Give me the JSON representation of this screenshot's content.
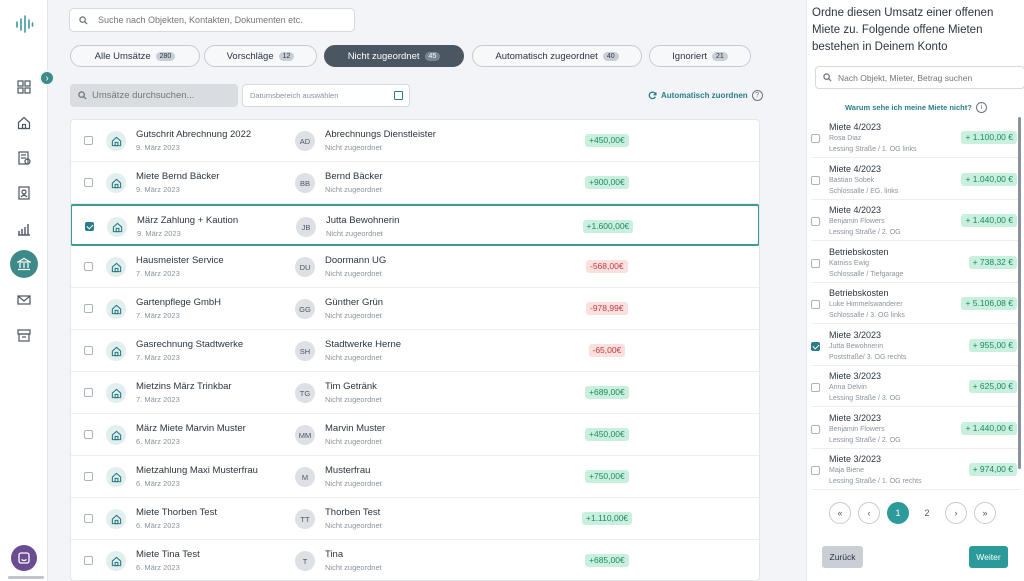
{
  "global_search": {
    "placeholder": "Suche nach Objekten, Kontakten, Dokumenten etc."
  },
  "tabs": [
    {
      "label": "Alle Umsätze",
      "count": "280"
    },
    {
      "label": "Vorschläge",
      "count": "12"
    },
    {
      "label": "Nicht zugeordnet",
      "count": "45"
    },
    {
      "label": "Automatisch zugeordnet",
      "count": "40"
    },
    {
      "label": "Ignoriert",
      "count": "21"
    }
  ],
  "toolbar": {
    "search_placeholder": "Umsätze durchsuchen...",
    "date_placeholder": "Datumsbereich auswählen",
    "auto_assign_label": "Automatisch zuordnen",
    "help_label": "?"
  },
  "transactions": [
    {
      "title": "Gutschrit Abrechnung 2022",
      "date": "9. März 2023",
      "initials": "AD",
      "party": "Abrechnungs Dienstleister",
      "status": "Nicht zugeordnet",
      "amount": "+450,00€",
      "sign": "pos",
      "checked": false
    },
    {
      "title": "Miete Bernd Bäcker",
      "date": "9. März 2023",
      "initials": "BB",
      "party": "Bernd Bäcker",
      "status": "Nicht zugeordnet",
      "amount": "+900,00€",
      "sign": "pos",
      "checked": false
    },
    {
      "title": "März Zahlung + Kaution",
      "date": "9. März 2023",
      "initials": "JB",
      "party": "Jutta Bewohnerin",
      "status": "Nicht zugeordnet",
      "amount": "+1.600,00€",
      "sign": "pos",
      "checked": true
    },
    {
      "title": "Hausmeister Service",
      "date": "7. März 2023",
      "initials": "DU",
      "party": "Doormann UG",
      "status": "Nicht zugeordnet",
      "amount": "-568,00€",
      "sign": "neg",
      "checked": false
    },
    {
      "title": "Gartenpflege GmbH",
      "date": "7. März 2023",
      "initials": "GG",
      "party": "Günther Grün",
      "status": "Nicht zugeordnet",
      "amount": "-978,99€",
      "sign": "neg",
      "checked": false
    },
    {
      "title": "Gasrechnung Stadtwerke",
      "date": "7. März 2023",
      "initials": "SH",
      "party": "Stadtwerke Herne",
      "status": "Nicht zugeordnet",
      "amount": "-65,00€",
      "sign": "neg",
      "checked": false
    },
    {
      "title": "Mietzins März Trinkbar",
      "date": "7. März 2023",
      "initials": "TG",
      "party": "Tim Getränk",
      "status": "Nicht zugeordnet",
      "amount": "+689,00€",
      "sign": "pos",
      "checked": false
    },
    {
      "title": "März Miete Marvin Muster",
      "date": "6. März 2023",
      "initials": "MM",
      "party": "Marvin Muster",
      "status": "Nicht zugeordnet",
      "amount": "+450,00€",
      "sign": "pos",
      "checked": false
    },
    {
      "title": "Mietzahlung Maxi Musterfrau",
      "date": "6. März 2023",
      "initials": "M",
      "party": "Musterfrau",
      "status": "Nicht zugeordnet",
      "amount": "+750,00€",
      "sign": "pos",
      "checked": false
    },
    {
      "title": "Miete Thorben Test",
      "date": "6. März 2023",
      "initials": "TT",
      "party": "Thorben Test",
      "status": "Nicht zugeordnet",
      "amount": "+1.110,00€",
      "sign": "pos",
      "checked": false
    },
    {
      "title": "Miete Tina Test",
      "date": "6. März 2023",
      "initials": "T",
      "party": "Tina",
      "status": "Nicht zugeordnet",
      "amount": "+685,00€",
      "sign": "pos",
      "checked": false
    }
  ],
  "panel": {
    "title": "Ordne diesen Umsatz einer offenen Miete zu. Folgende offene Mieten bestehen in Deinem Konto",
    "search_placeholder": "Nach Objekt, Mieter, Betrag suchen",
    "why_label": "Warum sehe ich meine Miete nicht?",
    "info_icon": "i",
    "rents": [
      {
        "title": "Miete 4/2023",
        "name": "Rosa Diaz",
        "address": "Lessing Straße / 1. OG links",
        "amount": "+ 1.100,00 €",
        "checked": false
      },
      {
        "title": "Miete 4/2023",
        "name": "Bastian Sobek",
        "address": "Schlossalle / EG. links",
        "amount": "+ 1.040,00 €",
        "checked": false
      },
      {
        "title": "Miete 4/2023",
        "name": "Benjamin Flowers",
        "address": "Lessing Straße / 2. OG",
        "amount": "+ 1.440,00 €",
        "checked": false
      },
      {
        "title": "Betriebskosten",
        "name": "Katniss Ewig",
        "address": "Schlossalle / Tiefgarage",
        "amount": "+ 738,32 €",
        "checked": false
      },
      {
        "title": "Betriebskosten",
        "name": "Luke Himmelswanderer",
        "address": "Schlossalle / 3. OG links",
        "amount": "+ 5.106,08 €",
        "checked": false
      },
      {
        "title": "Miete 3/2023",
        "name": "Jutta Bewohnerin",
        "address": "Poststraße/ 3. OG rechts",
        "amount": "+ 955,00 €",
        "checked": true
      },
      {
        "title": "Miete 3/2023",
        "name": "Anna Delvin",
        "address": "Lessing Straße / 3. OG",
        "amount": "+ 625,00 €",
        "checked": false
      },
      {
        "title": "Miete 3/2023",
        "name": "Benjamin Flowers",
        "address": "Lessing Straße / 2. OG",
        "amount": "+ 1.440,00 €",
        "checked": false
      },
      {
        "title": "Miete 3/2023",
        "name": "Maja Biene",
        "address": "Lessing Straße / 1. OG rechts",
        "amount": "+ 974,00 €",
        "checked": false
      }
    ],
    "pagination": {
      "first": "«",
      "prev": "‹",
      "pages": [
        "1",
        "2"
      ],
      "next": "›",
      "last": "»",
      "current": 1
    },
    "back_label": "Zurück",
    "next_label": "Weiter"
  },
  "colors": {
    "accent": "#2a9a9a",
    "positive_bg": "#c9f0df",
    "negative_bg": "#fbe0e0"
  }
}
